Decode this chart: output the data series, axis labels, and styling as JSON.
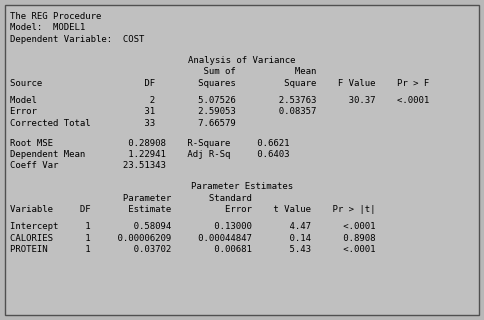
{
  "bg_color": "#b8b8b8",
  "box_color": "#c0c0c0",
  "border_color": "#505050",
  "text_color": "#000000",
  "font_family": "monospace",
  "font_size": 6.5,
  "header_lines": [
    "The REG Procedure",
    "Model:  MODEL1",
    "Dependent Variable:  COST"
  ],
  "anova_title": "Analysis of Variance",
  "anova_subheader1": "                                    Sum of           Mean",
  "anova_header": "Source                   DF        Squares         Square    F Value    Pr > F",
  "anova_rows": [
    "Model                     2        5.07526        2.53763      30.37    <.0001",
    "Error                    31        2.59053        0.08357",
    "Corrected Total          33        7.66579"
  ],
  "fit_rows": [
    "Root MSE              0.28908    R-Square     0.6621",
    "Dependent Mean        1.22941    Adj R-Sq     0.6403",
    "Coeff Var            23.51343"
  ],
  "param_title": "Parameter Estimates",
  "param_subheader1": "                     Parameter       Standard",
  "param_header": "Variable     DF       Estimate          Error    t Value    Pr > |t|",
  "param_rows": [
    "Intercept     1        0.58094        0.13000       4.47      <.0001",
    "CALORIES      1     0.00006209     0.00044847       0.14      0.8908",
    "PROTEIN       1        0.03702        0.00681       5.43      <.0001"
  ]
}
